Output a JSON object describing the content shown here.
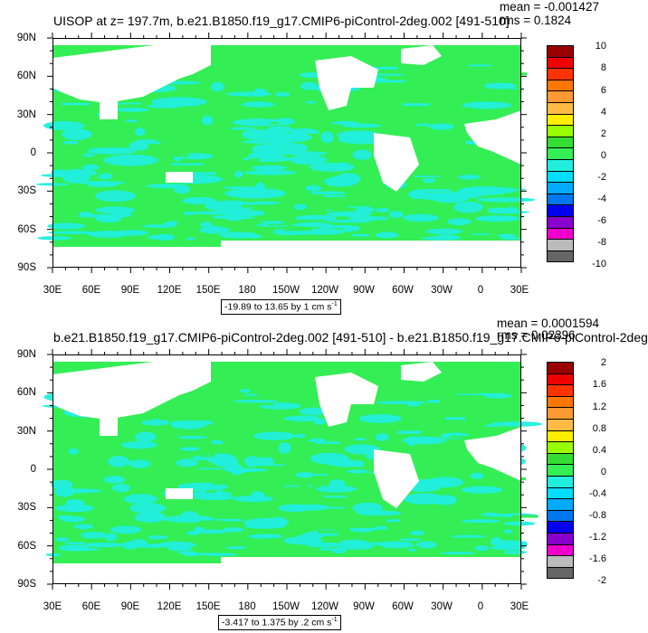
{
  "panels": [
    {
      "title": "UISOP at z= 197.7m, b.e21.B1850.f19_g17.CMIP6-piControl-2deg.002 [491-510]",
      "mean_text": "mean = -0.001427",
      "rms_text": "rms = 0.1824",
      "range_text": "-19.89 to 13.65 by 1 cm s",
      "range_unit_sup": "-1",
      "legend_labels": [
        "10",
        "8",
        "6",
        "4",
        "2",
        "0",
        "-2",
        "-4",
        "-6",
        "-8",
        "-10"
      ]
    },
    {
      "title": "b.e21.B1850.f19_g17.CMIP6-piControl-2deg.002 [491-510] - b.e21.B1850.f19_g17.CMIP6-piControl-2deg",
      "mean_text": "mean = 0.0001594",
      "rms_text": "rms = 0.02396",
      "range_text": "-3.417 to 1.375 by .2 cm s",
      "range_unit_sup": "-1",
      "legend_labels": [
        "2",
        "1.6",
        "1.2",
        "0.8",
        "0.4",
        "0",
        "-0.4",
        "-0.8",
        "-1.2",
        "-1.6",
        "-2"
      ]
    }
  ],
  "colors": {
    "ocean_green": "#33ee55",
    "ocean_cyan": "#22eedd",
    "land": "#ffffff",
    "legend": [
      "#990000",
      "#ee0000",
      "#ff3300",
      "#ff7700",
      "#ff9933",
      "#ffbb44",
      "#ffee00",
      "#99ff00",
      "#33dd33",
      "#33ee55",
      "#22eedd",
      "#00ddff",
      "#00aaff",
      "#0077ee",
      "#0000ee",
      "#8800cc",
      "#ee00cc",
      "#bbbbbb",
      "#666666"
    ]
  },
  "chart_data": [
    {
      "type": "heatmap",
      "title": "UISOP at z= 197.7m, b.e21.B1850.f19_g17.CMIP6-piControl-2deg.002 [491-510]",
      "x_ticks": [
        "30E",
        "60E",
        "90E",
        "120E",
        "150E",
        "180",
        "150W",
        "120W",
        "90W",
        "60W",
        "30W",
        "0",
        "30E"
      ],
      "y_ticks": [
        "90N",
        "60N",
        "30N",
        "0",
        "30S",
        "60S",
        "90S"
      ],
      "contour_levels": [
        -10,
        -9,
        -8,
        -7,
        -6,
        -5,
        -4,
        -3,
        -2,
        -1,
        0,
        1,
        2,
        3,
        4,
        5,
        6,
        7,
        8,
        9,
        10
      ],
      "min": -19.89,
      "max": 13.65,
      "interval": 1,
      "units": "cm s-1",
      "mean": -0.001427,
      "rms": 0.1824
    },
    {
      "type": "heatmap",
      "title": "b.e21.B1850.f19_g17.CMIP6-piControl-2deg.002 [491-510] - b.e21.B1850.f19_g17.CMIP6-piControl-2deg",
      "x_ticks": [
        "30E",
        "60E",
        "90E",
        "120E",
        "150E",
        "180",
        "150W",
        "120W",
        "90W",
        "60W",
        "30W",
        "0",
        "30E"
      ],
      "y_ticks": [
        "90N",
        "60N",
        "30N",
        "0",
        "30S",
        "60S",
        "90S"
      ],
      "contour_levels": [
        -2,
        -1.8,
        -1.6,
        -1.4,
        -1.2,
        -1,
        -0.8,
        -0.6,
        -0.4,
        -0.2,
        0,
        0.2,
        0.4,
        0.6,
        0.8,
        1,
        1.2,
        1.4,
        1.6,
        1.8,
        2
      ],
      "min": -3.417,
      "max": 1.375,
      "interval": 0.2,
      "units": "cm s-1",
      "mean": 0.0001594,
      "rms": 0.02396
    }
  ]
}
